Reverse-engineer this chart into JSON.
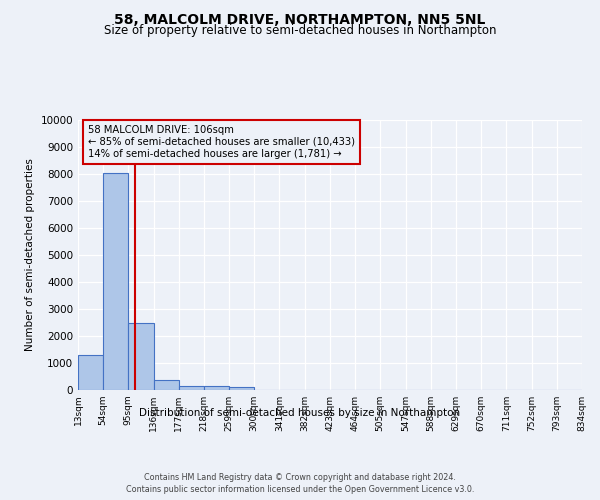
{
  "title": "58, MALCOLM DRIVE, NORTHAMPTON, NN5 5NL",
  "subtitle": "Size of property relative to semi-detached houses in Northampton",
  "xlabel": "Distribution of semi-detached houses by size in Northampton",
  "ylabel": "Number of semi-detached properties",
  "footer_line1": "Contains HM Land Registry data © Crown copyright and database right 2024.",
  "footer_line2": "Contains public sector information licensed under the Open Government Licence v3.0.",
  "bin_edges": [
    13,
    54,
    95,
    136,
    177,
    218,
    259,
    300,
    341,
    382,
    423,
    464,
    505,
    547,
    588,
    629,
    670,
    711,
    752,
    793,
    834
  ],
  "bin_labels": [
    "13sqm",
    "54sqm",
    "95sqm",
    "136sqm",
    "177sqm",
    "218sqm",
    "259sqm",
    "300sqm",
    "341sqm",
    "382sqm",
    "423sqm",
    "464sqm",
    "505sqm",
    "547sqm",
    "588sqm",
    "629sqm",
    "670sqm",
    "711sqm",
    "752sqm",
    "793sqm",
    "834sqm"
  ],
  "bar_heights": [
    1300,
    8050,
    2500,
    380,
    140,
    130,
    110,
    0,
    0,
    0,
    0,
    0,
    0,
    0,
    0,
    0,
    0,
    0,
    0,
    0
  ],
  "bar_color": "#aec6e8",
  "bar_edge_color": "#4472c4",
  "property_size": 106,
  "red_line_color": "#cc0000",
  "annotation_title": "58 MALCOLM DRIVE: 106sqm",
  "annotation_line2": "← 85% of semi-detached houses are smaller (10,433)",
  "annotation_line3": "14% of semi-detached houses are larger (1,781) →",
  "annotation_box_color": "#cc0000",
  "ylim": [
    0,
    10000
  ],
  "yticks": [
    0,
    1000,
    2000,
    3000,
    4000,
    5000,
    6000,
    7000,
    8000,
    9000,
    10000
  ],
  "bg_color": "#edf1f8",
  "grid_color": "#ffffff",
  "title_fontsize": 10,
  "subtitle_fontsize": 8.5
}
